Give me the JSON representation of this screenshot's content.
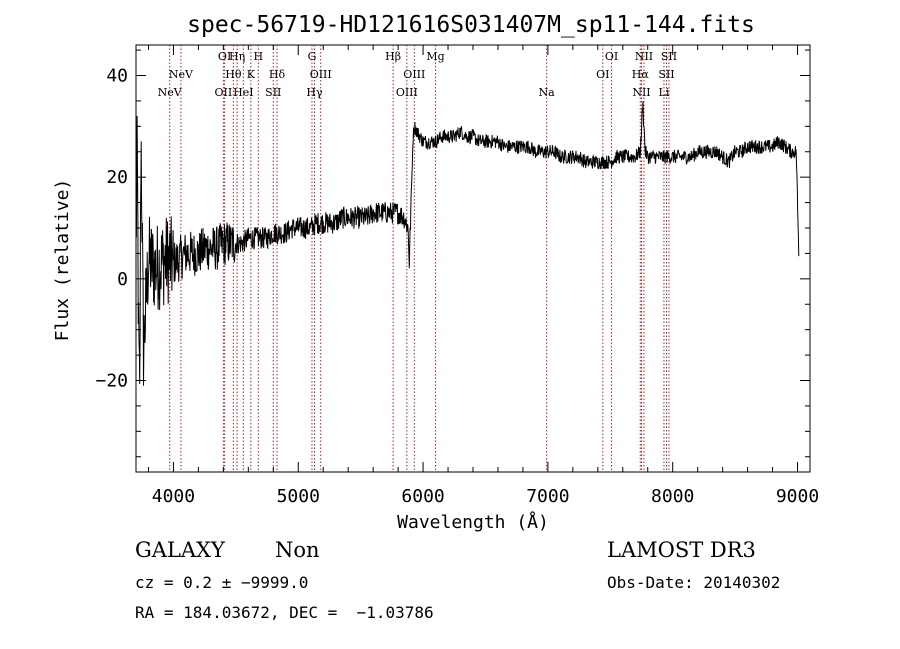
{
  "chart_data": {
    "type": "line",
    "title": "spec-56719-HD121616S031407M_sp11-144.fits",
    "xlabel": "Wavelength (Å)",
    "ylabel": "Flux (relative)",
    "xlim": [
      3700,
      9100
    ],
    "ylim": [
      -38,
      46
    ],
    "xticks": [
      4000,
      5000,
      6000,
      7000,
      8000,
      9000
    ],
    "yticks": [
      -20,
      0,
      20,
      40
    ],
    "ytick_labels": [
      "−20",
      "0",
      "20",
      "40"
    ],
    "grid": false,
    "line_color": "#000000",
    "marker_color": "#b22222",
    "series": [
      {
        "name": "flux",
        "anchors": [
          [
            3700,
            6
          ],
          [
            3710,
            25
          ],
          [
            3720,
            -10
          ],
          [
            3730,
            -25
          ],
          [
            3740,
            30
          ],
          [
            3760,
            -14
          ],
          [
            3800,
            4
          ],
          [
            3850,
            2
          ],
          [
            3900,
            3
          ],
          [
            3950,
            4
          ],
          [
            4000,
            3
          ],
          [
            4050,
            4
          ],
          [
            4100,
            5
          ],
          [
            4150,
            5
          ],
          [
            4200,
            5
          ],
          [
            4250,
            6
          ],
          [
            4300,
            6
          ],
          [
            4350,
            6
          ],
          [
            4400,
            7
          ],
          [
            4450,
            7
          ],
          [
            4500,
            7
          ],
          [
            4550,
            7
          ],
          [
            4600,
            8
          ],
          [
            4650,
            8
          ],
          [
            4700,
            8
          ],
          [
            4750,
            8
          ],
          [
            4800,
            9
          ],
          [
            4850,
            9
          ],
          [
            4900,
            9
          ],
          [
            4950,
            10
          ],
          [
            5000,
            10
          ],
          [
            5050,
            10
          ],
          [
            5100,
            10
          ],
          [
            5150,
            11
          ],
          [
            5200,
            11
          ],
          [
            5250,
            11
          ],
          [
            5300,
            11
          ],
          [
            5350,
            12
          ],
          [
            5400,
            12
          ],
          [
            5450,
            12
          ],
          [
            5500,
            12
          ],
          [
            5550,
            12
          ],
          [
            5600,
            13
          ],
          [
            5650,
            13
          ],
          [
            5700,
            13
          ],
          [
            5750,
            13
          ],
          [
            5800,
            13
          ],
          [
            5850,
            12
          ],
          [
            5880,
            10
          ],
          [
            5890,
            3
          ],
          [
            5900,
            12
          ],
          [
            5910,
            20
          ],
          [
            5920,
            28
          ],
          [
            5930,
            30
          ],
          [
            5950,
            29
          ],
          [
            6000,
            27
          ],
          [
            6050,
            27
          ],
          [
            6100,
            27
          ],
          [
            6150,
            28
          ],
          [
            6200,
            28
          ],
          [
            6250,
            28
          ],
          [
            6300,
            29
          ],
          [
            6350,
            28
          ],
          [
            6400,
            28
          ],
          [
            6450,
            27
          ],
          [
            6500,
            27
          ],
          [
            6550,
            27
          ],
          [
            6600,
            27
          ],
          [
            6650,
            26
          ],
          [
            6700,
            26
          ],
          [
            6750,
            26
          ],
          [
            6800,
            26
          ],
          [
            6850,
            26
          ],
          [
            6900,
            25
          ],
          [
            6950,
            25
          ],
          [
            7000,
            25
          ],
          [
            7050,
            25
          ],
          [
            7100,
            24
          ],
          [
            7150,
            24
          ],
          [
            7200,
            24
          ],
          [
            7250,
            24
          ],
          [
            7300,
            23
          ],
          [
            7350,
            23
          ],
          [
            7400,
            23
          ],
          [
            7450,
            23
          ],
          [
            7500,
            23
          ],
          [
            7550,
            24
          ],
          [
            7600,
            24
          ],
          [
            7650,
            24
          ],
          [
            7700,
            24
          ],
          [
            7740,
            25
          ],
          [
            7750,
            29
          ],
          [
            7760,
            35
          ],
          [
            7770,
            30
          ],
          [
            7780,
            25
          ],
          [
            7800,
            24
          ],
          [
            7850,
            24
          ],
          [
            7900,
            24
          ],
          [
            7950,
            24
          ],
          [
            8000,
            24
          ],
          [
            8050,
            24
          ],
          [
            8100,
            24
          ],
          [
            8150,
            24
          ],
          [
            8200,
            25
          ],
          [
            8250,
            25
          ],
          [
            8300,
            25
          ],
          [
            8350,
            25
          ],
          [
            8400,
            24
          ],
          [
            8450,
            23
          ],
          [
            8500,
            25
          ],
          [
            8550,
            25
          ],
          [
            8600,
            26
          ],
          [
            8650,
            26
          ],
          [
            8700,
            26
          ],
          [
            8750,
            26
          ],
          [
            8800,
            26
          ],
          [
            8850,
            27
          ],
          [
            8900,
            26
          ],
          [
            8950,
            25
          ],
          [
            8990,
            25
          ],
          [
            9000,
            15
          ],
          [
            9010,
            5
          ]
        ]
      }
    ],
    "line_markers": [
      {
        "wavelength": 3970,
        "label": "NeV",
        "row": 2
      },
      {
        "wavelength": 4060,
        "label": "NeV",
        "row": 1
      },
      {
        "wavelength": 4400,
        "label": "OII",
        "row": 2
      },
      {
        "wavelength": 4410,
        "label": "OI",
        "row": 0
      },
      {
        "wavelength": 4480,
        "label": "Hθ",
        "row": 1
      },
      {
        "wavelength": 4510,
        "label": "Hη",
        "row": 0
      },
      {
        "wavelength": 4560,
        "label": "HeI",
        "row": 2
      },
      {
        "wavelength": 4620,
        "label": "K",
        "row": 1
      },
      {
        "wavelength": 4680,
        "label": "H",
        "row": 0
      },
      {
        "wavelength": 4800,
        "label": "SII",
        "row": 2
      },
      {
        "wavelength": 4830,
        "label": "Hδ",
        "row": 1
      },
      {
        "wavelength": 5110,
        "label": "G",
        "row": 0
      },
      {
        "wavelength": 5130,
        "label": "Hγ",
        "row": 2
      },
      {
        "wavelength": 5180,
        "label": "OIII",
        "row": 1
      },
      {
        "wavelength": 5760,
        "label": "Hβ",
        "row": 0
      },
      {
        "wavelength": 5870,
        "label": "OIII",
        "row": 2
      },
      {
        "wavelength": 5930,
        "label": "OIII",
        "row": 1
      },
      {
        "wavelength": 6100,
        "label": "Mg",
        "row": 0
      },
      {
        "wavelength": 6990,
        "label": "Na",
        "row": 2
      },
      {
        "wavelength": 7440,
        "label": "OI",
        "row": 1
      },
      {
        "wavelength": 7510,
        "label": "OI",
        "row": 0
      },
      {
        "wavelength": 7740,
        "label": "Hα",
        "row": 1
      },
      {
        "wavelength": 7750,
        "label": "NII",
        "row": 2
      },
      {
        "wavelength": 7770,
        "label": "NII",
        "row": 0
      },
      {
        "wavelength": 7930,
        "label": "Li",
        "row": 2
      },
      {
        "wavelength": 7950,
        "label": "SII",
        "row": 1
      },
      {
        "wavelength": 7970,
        "label": "SII",
        "row": 0
      }
    ]
  },
  "info": {
    "object_class": "GALAXY",
    "subclass": "Non",
    "survey": "LAMOST DR3",
    "redshift_line": "cz = 0.2 ± −9999.0",
    "obs_date_line": "Obs-Date: 20140302",
    "coords_line": "RA = 184.03672, DEC =  −1.03786"
  }
}
